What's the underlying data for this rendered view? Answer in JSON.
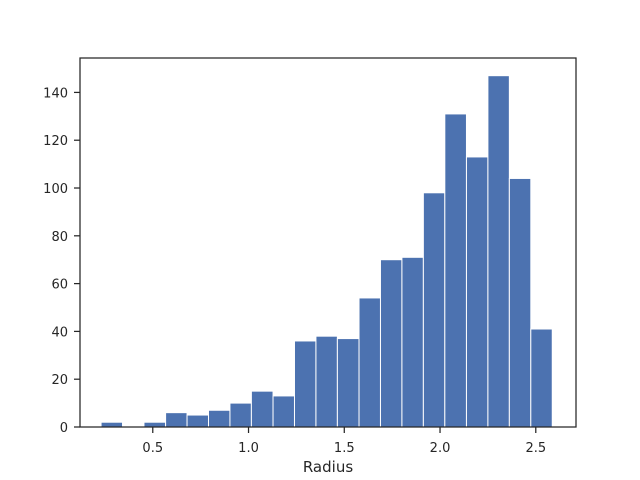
{
  "chart_data": {
    "type": "histogram",
    "title": "",
    "xlabel": "Radius",
    "ylabel": "",
    "xlim": [
      0.12,
      2.71
    ],
    "ylim": [
      0,
      154.4
    ],
    "bar_color": "#4c72b0",
    "grid": false,
    "xticks": [
      0.5,
      1.0,
      1.5,
      2.0,
      2.5
    ],
    "xtick_labels": [
      "0.5",
      "1.0",
      "1.5",
      "2.0",
      "2.5"
    ],
    "yticks": [
      0,
      20,
      40,
      60,
      80,
      100,
      120,
      140
    ],
    "ytick_labels": [
      "0",
      "20",
      "40",
      "60",
      "80",
      "100",
      "120",
      "140"
    ],
    "bin_edges": [
      0.23,
      0.342,
      0.454,
      0.567,
      0.679,
      0.791,
      0.903,
      1.015,
      1.128,
      1.24,
      1.352,
      1.464,
      1.577,
      1.689,
      1.801,
      1.913,
      2.025,
      2.138,
      2.25,
      2.362,
      2.474,
      2.586
    ],
    "counts": [
      2,
      0,
      2,
      6,
      5,
      7,
      10,
      15,
      13,
      36,
      38,
      37,
      54,
      70,
      71,
      98,
      131,
      113,
      147,
      104,
      41
    ]
  }
}
